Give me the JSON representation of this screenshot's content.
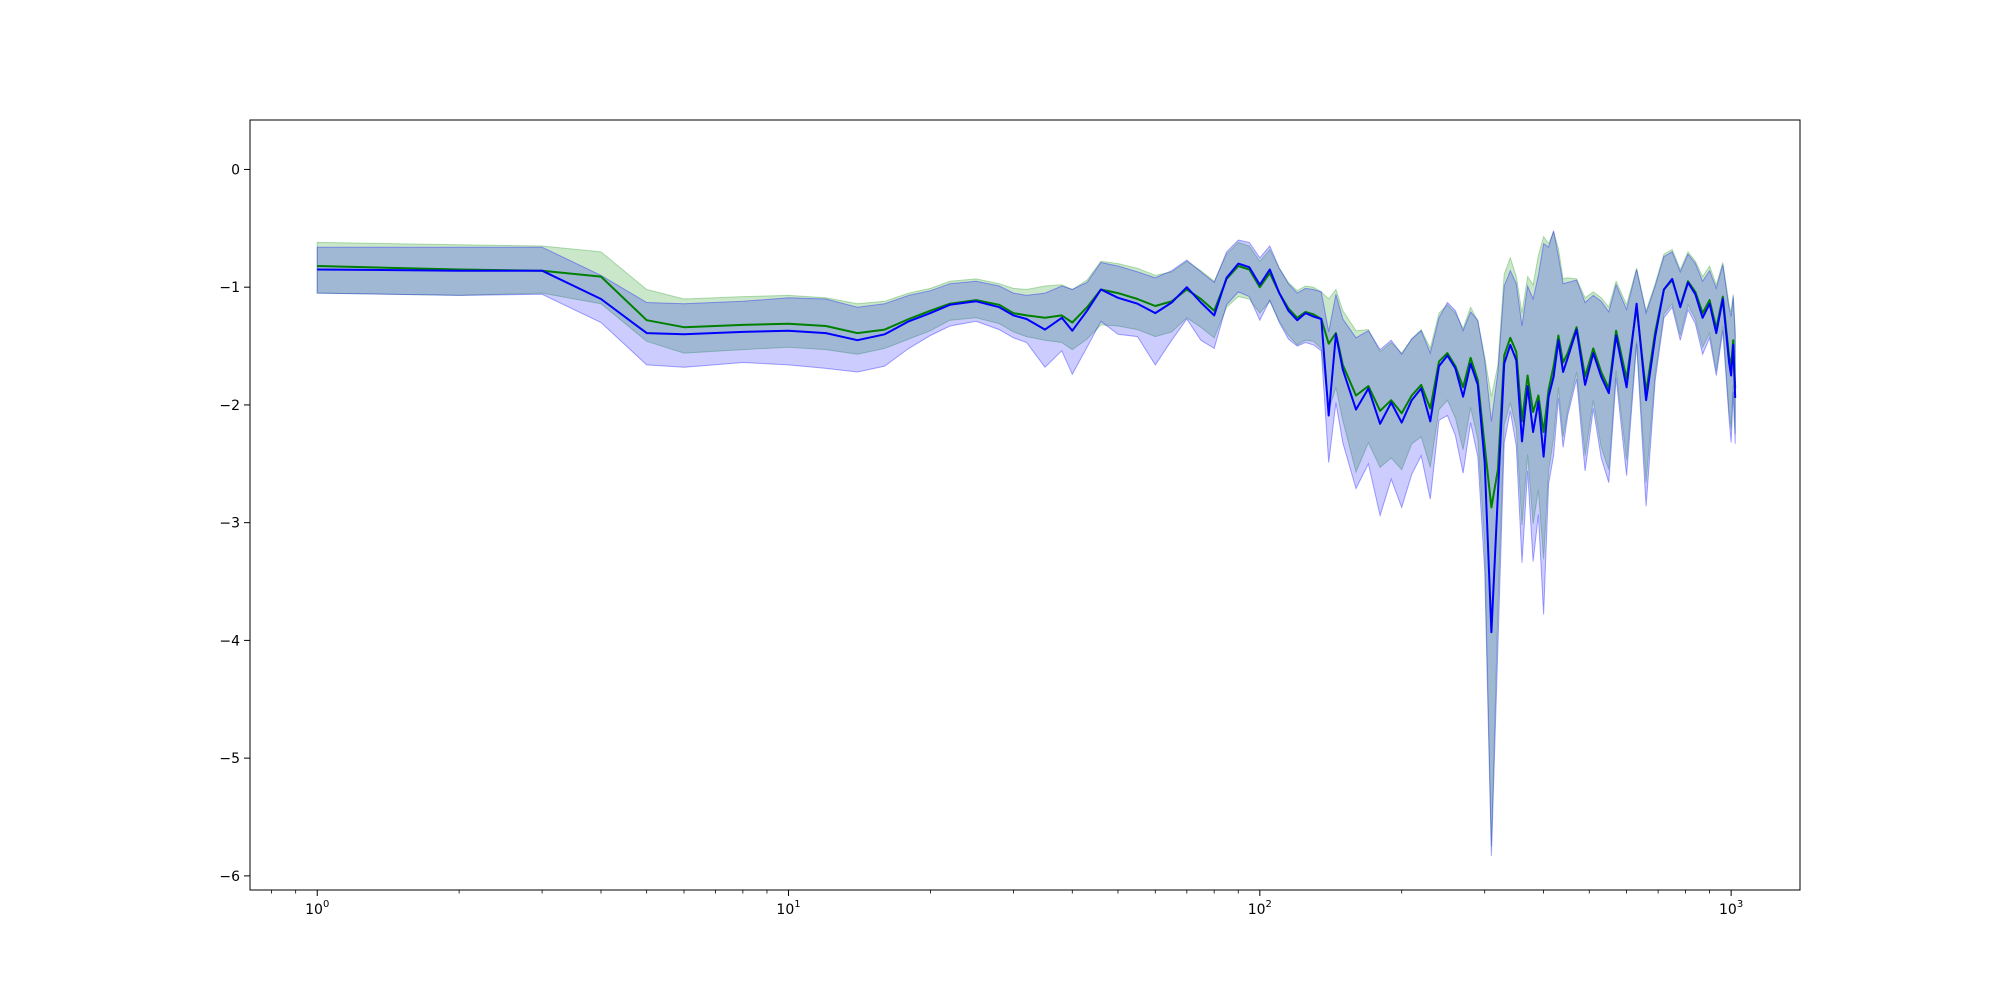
{
  "chart_data": {
    "type": "line",
    "title": "",
    "xlabel": "",
    "ylabel": "",
    "xscale": "log",
    "xlim": [
      0.72,
      1400
    ],
    "ylim": [
      -6.12,
      0.42
    ],
    "grid": false,
    "x_ticks": [
      1,
      10,
      100,
      1000
    ],
    "x_tick_labels": [
      {
        "base": "10",
        "exp": "0"
      },
      {
        "base": "10",
        "exp": "1"
      },
      {
        "base": "10",
        "exp": "2"
      },
      {
        "base": "10",
        "exp": "3"
      }
    ],
    "y_ticks": [
      0,
      -1,
      -2,
      -3,
      -4,
      -5,
      -6
    ],
    "y_tick_labels": [
      "0",
      "−1",
      "−2",
      "−3",
      "−4",
      "−5",
      "−6"
    ],
    "series": [
      {
        "color": "#008000",
        "band_color": "#2ca02c",
        "band_opacity": 0.25,
        "x": [
          1,
          2,
          3,
          4,
          5,
          6,
          8,
          10,
          12,
          14,
          16,
          18,
          20,
          22,
          25,
          28,
          30,
          32,
          35,
          38,
          40,
          43,
          46,
          50,
          55,
          60,
          65,
          70,
          75,
          80,
          85,
          90,
          95,
          100,
          105,
          110,
          115,
          120,
          125,
          130,
          135,
          140,
          145,
          150,
          160,
          170,
          180,
          190,
          200,
          210,
          220,
          230,
          240,
          250,
          260,
          270,
          280,
          290,
          300,
          310,
          320,
          330,
          340,
          350,
          360,
          370,
          380,
          390,
          400,
          410,
          420,
          430,
          440,
          450,
          470,
          490,
          510,
          530,
          550,
          570,
          600,
          630,
          660,
          690,
          720,
          750,
          780,
          810,
          840,
          870,
          900,
          930,
          960,
          990,
          1000,
          1010,
          1020
        ],
        "y": [
          -0.82,
          -0.85,
          -0.86,
          -0.91,
          -1.28,
          -1.34,
          -1.32,
          -1.31,
          -1.33,
          -1.39,
          -1.36,
          -1.27,
          -1.2,
          -1.14,
          -1.11,
          -1.15,
          -1.22,
          -1.24,
          -1.26,
          -1.24,
          -1.3,
          -1.17,
          -1.02,
          -1.05,
          -1.1,
          -1.16,
          -1.12,
          -1.02,
          -1.1,
          -1.2,
          -0.93,
          -0.82,
          -0.85,
          -1.0,
          -0.88,
          -1.05,
          -1.18,
          -1.26,
          -1.21,
          -1.23,
          -1.27,
          -1.48,
          -1.39,
          -1.66,
          -1.92,
          -1.84,
          -2.05,
          -1.96,
          -2.07,
          -1.92,
          -1.83,
          -2.03,
          -1.63,
          -1.56,
          -1.67,
          -1.85,
          -1.6,
          -1.79,
          -2.35,
          -2.87,
          -2.55,
          -1.58,
          -1.43,
          -1.55,
          -2.14,
          -1.75,
          -2.06,
          -1.92,
          -2.23,
          -1.87,
          -1.67,
          -1.41,
          -1.64,
          -1.56,
          -1.34,
          -1.76,
          -1.52,
          -1.72,
          -1.86,
          -1.37,
          -1.78,
          -1.17,
          -1.89,
          -1.38,
          -1.02,
          -0.94,
          -1.16,
          -0.95,
          -1.04,
          -1.22,
          -1.11,
          -1.35,
          -1.08,
          -1.59,
          -1.67,
          -1.45,
          -1.86
        ],
        "lower": [
          -1.05,
          -1.07,
          -1.05,
          -1.14,
          -1.46,
          -1.56,
          -1.53,
          -1.51,
          -1.53,
          -1.57,
          -1.52,
          -1.44,
          -1.37,
          -1.28,
          -1.26,
          -1.31,
          -1.38,
          -1.42,
          -1.45,
          -1.47,
          -1.53,
          -1.44,
          -1.32,
          -1.33,
          -1.36,
          -1.42,
          -1.38,
          -1.26,
          -1.34,
          -1.43,
          -1.17,
          -1.08,
          -1.1,
          -1.22,
          -1.12,
          -1.29,
          -1.41,
          -1.49,
          -1.45,
          -1.46,
          -1.52,
          -2.05,
          -1.85,
          -2.13,
          -2.57,
          -2.32,
          -2.53,
          -2.45,
          -2.55,
          -2.33,
          -2.27,
          -2.53,
          -2.04,
          -1.96,
          -2.11,
          -2.38,
          -2.02,
          -2.29,
          -3.18,
          -5.75,
          -3.72,
          -2.17,
          -1.98,
          -2.2,
          -3.02,
          -2.42,
          -3.01,
          -2.72,
          -3.31,
          -2.56,
          -2.28,
          -1.85,
          -2.27,
          -2.05,
          -1.72,
          -2.43,
          -1.96,
          -2.36,
          -2.55,
          -1.71,
          -2.47,
          -1.46,
          -2.66,
          -1.73,
          -1.23,
          -1.14,
          -1.41,
          -1.15,
          -1.27,
          -1.51,
          -1.39,
          -1.71,
          -1.33,
          -2.06,
          -2.2,
          -1.83,
          -2.25
        ],
        "upper": [
          -0.62,
          -0.64,
          -0.65,
          -0.7,
          -1.02,
          -1.1,
          -1.08,
          -1.07,
          -1.09,
          -1.14,
          -1.12,
          -1.05,
          -1.01,
          -0.95,
          -0.93,
          -0.97,
          -1.01,
          -1.02,
          -0.99,
          -0.98,
          -1.02,
          -0.94,
          -0.78,
          -0.8,
          -0.84,
          -0.9,
          -0.87,
          -0.78,
          -0.86,
          -0.95,
          -0.72,
          -0.62,
          -0.65,
          -0.78,
          -0.68,
          -0.84,
          -0.96,
          -1.03,
          -0.99,
          -1.0,
          -1.04,
          -1.1,
          -1.02,
          -1.2,
          -1.37,
          -1.36,
          -1.55,
          -1.47,
          -1.56,
          -1.44,
          -1.36,
          -1.52,
          -1.22,
          -1.15,
          -1.22,
          -1.35,
          -1.17,
          -1.29,
          -1.59,
          -1.93,
          -1.66,
          -0.89,
          -0.75,
          -0.91,
          -1.22,
          -0.91,
          -0.98,
          -0.73,
          -0.57,
          -0.63,
          -0.53,
          -0.67,
          -0.93,
          -0.92,
          -0.93,
          -1.09,
          -1.04,
          -1.09,
          -1.17,
          -0.95,
          -1.15,
          -0.84,
          -1.2,
          -0.97,
          -0.72,
          -0.68,
          -0.85,
          -0.7,
          -0.78,
          -0.91,
          -0.82,
          -0.98,
          -0.79,
          -1.15,
          -1.21,
          -1.06,
          -1.36
        ]
      },
      {
        "color": "#0000ff",
        "band_color": "#0000ff",
        "band_opacity": 0.2,
        "x": [
          1,
          2,
          3,
          4,
          5,
          6,
          8,
          10,
          12,
          14,
          16,
          18,
          20,
          22,
          25,
          28,
          30,
          32,
          35,
          38,
          40,
          43,
          46,
          50,
          55,
          60,
          65,
          70,
          75,
          80,
          85,
          90,
          95,
          100,
          105,
          110,
          115,
          120,
          125,
          130,
          135,
          140,
          145,
          150,
          160,
          170,
          180,
          190,
          200,
          210,
          220,
          230,
          240,
          250,
          260,
          270,
          280,
          290,
          300,
          310,
          320,
          330,
          340,
          350,
          360,
          370,
          380,
          390,
          400,
          410,
          420,
          430,
          440,
          450,
          470,
          490,
          510,
          530,
          550,
          570,
          600,
          630,
          660,
          690,
          720,
          750,
          780,
          810,
          840,
          870,
          900,
          930,
          960,
          990,
          1000,
          1010,
          1020
        ],
        "y": [
          -0.85,
          -0.86,
          -0.86,
          -1.1,
          -1.39,
          -1.4,
          -1.38,
          -1.37,
          -1.39,
          -1.45,
          -1.4,
          -1.29,
          -1.22,
          -1.15,
          -1.12,
          -1.17,
          -1.24,
          -1.27,
          -1.36,
          -1.26,
          -1.37,
          -1.2,
          -1.02,
          -1.09,
          -1.14,
          -1.22,
          -1.13,
          -1.0,
          -1.13,
          -1.24,
          -0.92,
          -0.8,
          -0.83,
          -0.98,
          -0.85,
          -1.05,
          -1.2,
          -1.28,
          -1.22,
          -1.25,
          -1.27,
          -2.09,
          -1.4,
          -1.7,
          -2.04,
          -1.86,
          -2.16,
          -1.98,
          -2.15,
          -1.96,
          -1.86,
          -2.14,
          -1.67,
          -1.58,
          -1.69,
          -1.93,
          -1.65,
          -1.83,
          -2.49,
          -3.93,
          -2.76,
          -1.65,
          -1.49,
          -1.62,
          -2.31,
          -1.84,
          -2.23,
          -1.97,
          -2.44,
          -1.93,
          -1.76,
          -1.45,
          -1.72,
          -1.6,
          -1.36,
          -1.83,
          -1.56,
          -1.76,
          -1.9,
          -1.41,
          -1.85,
          -1.14,
          -1.96,
          -1.42,
          -1.02,
          -0.93,
          -1.17,
          -0.96,
          -1.06,
          -1.26,
          -1.14,
          -1.39,
          -1.1,
          -1.64,
          -1.75,
          -1.49,
          -1.94
        ],
        "lower": [
          -1.05,
          -1.07,
          -1.06,
          -1.3,
          -1.66,
          -1.68,
          -1.64,
          -1.66,
          -1.69,
          -1.72,
          -1.67,
          -1.52,
          -1.41,
          -1.33,
          -1.29,
          -1.36,
          -1.43,
          -1.47,
          -1.68,
          -1.54,
          -1.74,
          -1.51,
          -1.29,
          -1.4,
          -1.42,
          -1.66,
          -1.45,
          -1.27,
          -1.45,
          -1.52,
          -1.15,
          -1.04,
          -1.08,
          -1.28,
          -1.11,
          -1.3,
          -1.44,
          -1.5,
          -1.47,
          -1.49,
          -1.54,
          -2.49,
          -1.98,
          -2.32,
          -2.71,
          -2.5,
          -2.94,
          -2.63,
          -2.87,
          -2.59,
          -2.43,
          -2.8,
          -2.13,
          -2.09,
          -2.26,
          -2.58,
          -2.15,
          -2.44,
          -3.4,
          -5.83,
          -4.05,
          -2.32,
          -2.05,
          -2.35,
          -3.34,
          -2.56,
          -3.33,
          -2.93,
          -3.78,
          -2.67,
          -2.43,
          -1.94,
          -2.36,
          -2.09,
          -1.78,
          -2.56,
          -2.03,
          -2.45,
          -2.66,
          -1.77,
          -2.6,
          -1.48,
          -2.86,
          -1.79,
          -1.26,
          -1.17,
          -1.45,
          -1.19,
          -1.31,
          -1.57,
          -1.43,
          -1.75,
          -1.37,
          -2.12,
          -2.32,
          -1.89,
          -2.33
        ],
        "upper": [
          -0.66,
          -0.66,
          -0.66,
          -0.9,
          -1.13,
          -1.14,
          -1.12,
          -1.09,
          -1.1,
          -1.17,
          -1.14,
          -1.07,
          -1.03,
          -0.97,
          -0.95,
          -0.99,
          -1.05,
          -1.07,
          -1.05,
          -0.99,
          -1.02,
          -0.96,
          -0.79,
          -0.82,
          -0.87,
          -0.92,
          -0.86,
          -0.77,
          -0.87,
          -0.96,
          -0.7,
          -0.6,
          -0.62,
          -0.75,
          -0.65,
          -0.84,
          -0.97,
          -1.05,
          -1.01,
          -1.02,
          -1.04,
          -1.38,
          -1.06,
          -1.27,
          -1.43,
          -1.37,
          -1.53,
          -1.45,
          -1.57,
          -1.44,
          -1.37,
          -1.56,
          -1.26,
          -1.13,
          -1.2,
          -1.37,
          -1.21,
          -1.28,
          -1.62,
          -2.14,
          -1.72,
          -0.99,
          -0.86,
          -0.97,
          -1.33,
          -0.99,
          -1.1,
          -0.9,
          -0.63,
          -0.66,
          -0.52,
          -0.74,
          -0.97,
          -0.96,
          -0.94,
          -1.13,
          -1.07,
          -1.12,
          -1.21,
          -0.98,
          -1.19,
          -0.85,
          -1.22,
          -0.99,
          -0.74,
          -0.7,
          -0.87,
          -0.72,
          -0.8,
          -0.95,
          -0.86,
          -1.01,
          -0.81,
          -1.18,
          -1.25,
          -1.08,
          -1.4
        ]
      }
    ]
  }
}
